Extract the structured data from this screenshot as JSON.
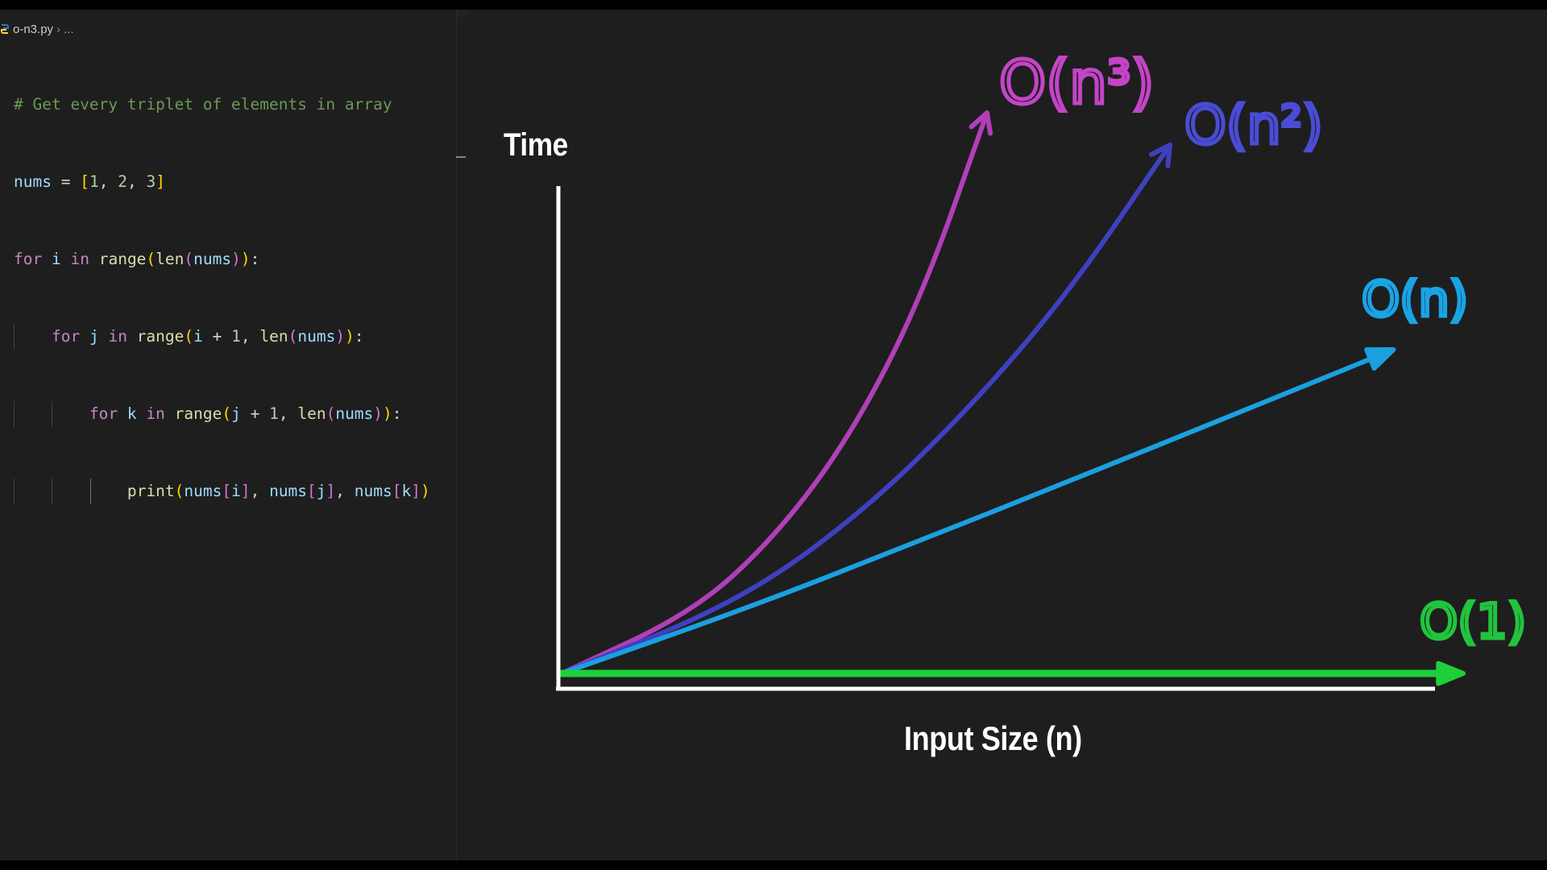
{
  "editor": {
    "breadcrumb": {
      "file": "o-n3.py",
      "separator": "›",
      "more": "..."
    },
    "code_lines": [
      "# Get every triplet of elements in array",
      "nums = [1, 2, 3]",
      "for i in range(len(nums)):",
      "    for j in range(i + 1, len(nums)):",
      "        for k in range(j + 1, len(nums)):",
      "            print(nums[i], nums[j], nums[k])"
    ],
    "syntax_colors": {
      "comment": "#6a9955",
      "keyword": "#c586c0",
      "variable": "#9cdcfe",
      "function": "#dcdcaa",
      "number": "#b5cea8"
    }
  },
  "chart_data": {
    "type": "line",
    "ylabel": "Time",
    "xlabel": "Input Size (n)",
    "series": [
      {
        "name": "O(n³)",
        "color": "#b03fb8",
        "label_color": "#c444c8",
        "values": [
          0,
          0.11,
          0.25,
          0.43,
          0.67,
          1.0
        ]
      },
      {
        "name": "O(n²)",
        "color": "#3f40c0",
        "label_color": "#4a4cd6",
        "values": [
          0,
          0.13,
          0.29,
          0.49,
          0.72,
          1.0
        ]
      },
      {
        "name": "O(n)",
        "color": "#1aa0e0",
        "label_color": "#19a4e6",
        "values": [
          0,
          0.2,
          0.4,
          0.6,
          0.8,
          1.0
        ]
      },
      {
        "name": "O(1)",
        "color": "#1fcf3a",
        "label_color": "#22c43e",
        "values": [
          0.02,
          0.02,
          0.02,
          0.02,
          0.02,
          0.02
        ]
      }
    ],
    "x": [
      0,
      0.2,
      0.4,
      0.6,
      0.8,
      1.0
    ],
    "grid": false,
    "legend": "hand-written labels at curve ends"
  }
}
